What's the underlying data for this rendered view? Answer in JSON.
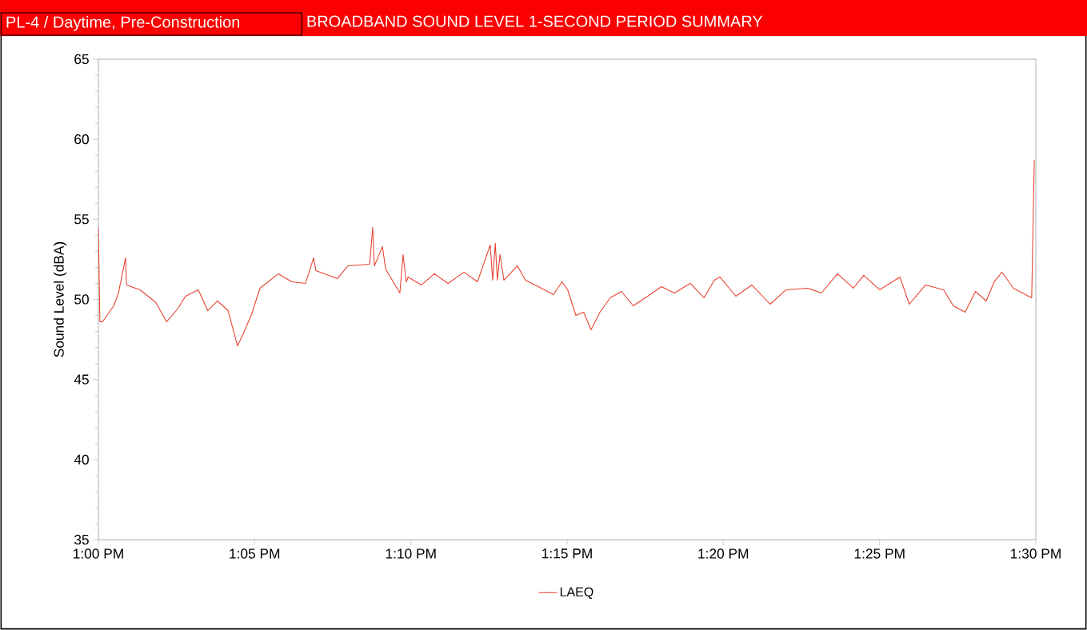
{
  "chart_data": {
    "type": "line",
    "title": "PL-4 / Daytime, Pre-Construction",
    "subtitle": "BROADBAND SOUND LEVEL 1-SECOND PERIOD SUMMARY",
    "ylabel": "Sound Level (dBA)",
    "x": [
      13,
      13.0008,
      13.0022,
      13.0082,
      13.0107,
      13.0145,
      13.015,
      13.0222,
      13.0307,
      13.0363,
      13.0422,
      13.0465,
      13.0533,
      13.0583,
      13.0635,
      13.0692,
      13.0742,
      13.0767,
      13.0818,
      13.0862,
      13.096,
      13.1032,
      13.1105,
      13.1148,
      13.116,
      13.1275,
      13.1332,
      13.1447,
      13.1463,
      13.1472,
      13.1515,
      13.1532,
      13.1608,
      13.1625,
      13.1642,
      13.1652,
      13.1723,
      13.1792,
      13.1865,
      13.195,
      13.2022,
      13.209,
      13.2103,
      13.2117,
      13.2128,
      13.2142,
      13.2163,
      13.2235,
      13.2278,
      13.2363,
      13.2427,
      13.2473,
      13.2503,
      13.2547,
      13.2588,
      13.2628,
      13.2675,
      13.273,
      13.279,
      13.2853,
      13.293,
      13.3003,
      13.3072,
      13.3157,
      13.323,
      13.3285,
      13.3315,
      13.34,
      13.3485,
      13.3583,
      13.3668,
      13.3783,
      13.3857,
      13.3942,
      13.4027,
      13.4082,
      13.4167,
      13.4275,
      13.4325,
      13.4412,
      13.4508,
      13.456,
      13.4623,
      13.4678,
      13.4735,
      13.4778,
      13.482,
      13.488,
      13.4978,
      13.4992
    ],
    "series": [
      {
        "name": "LAEQ",
        "color": "#e8402f",
        "values": [
          54.5,
          48.6,
          48.6,
          49.6,
          50.4,
          52.6,
          50.9,
          50.6,
          49.8,
          48.6,
          49.4,
          50.2,
          50.6,
          49.3,
          49.9,
          49.3,
          47.1,
          47.7,
          49.1,
          50.7,
          51.6,
          51.1,
          51.0,
          52.6,
          51.8,
          51.3,
          52.1,
          52.2,
          54.5,
          52.1,
          53.3,
          51.9,
          50.4,
          52.8,
          51.1,
          51.4,
          50.9,
          51.6,
          51.0,
          51.7,
          51.1,
          53.4,
          51.2,
          53.5,
          51.2,
          52.8,
          51.2,
          52.1,
          51.2,
          50.7,
          50.3,
          51.1,
          50.6,
          49.0,
          49.2,
          48.1,
          49.2,
          50.1,
          50.5,
          49.6,
          50.2,
          50.8,
          50.4,
          51.0,
          50.1,
          51.2,
          51.4,
          50.2,
          50.9,
          49.7,
          50.6,
          50.7,
          50.4,
          51.6,
          50.7,
          51.5,
          50.6,
          51.4,
          49.7,
          50.9,
          50.6,
          49.6,
          49.2,
          50.5,
          49.9,
          51.1,
          51.7,
          50.7,
          50.1,
          58.7
        ]
      }
    ],
    "xlim": [
      13,
      13.5
    ],
    "xticks": [
      {
        "value": 13,
        "label": "1:00 PM"
      },
      {
        "value": 13.0833,
        "label": "1:05 PM"
      },
      {
        "value": 13.1667,
        "label": "1:10 PM"
      },
      {
        "value": 13.25,
        "label": "1:15 PM"
      },
      {
        "value": 13.3333,
        "label": "1:20 PM"
      },
      {
        "value": 13.4167,
        "label": "1:25 PM"
      },
      {
        "value": 13.5,
        "label": "1:30 PM"
      }
    ],
    "ylim": [
      35,
      65
    ],
    "yticks": [
      35,
      40,
      45,
      50,
      55,
      60,
      65
    ],
    "legend": "bottom",
    "marker": "none",
    "line_style": "solid"
  }
}
